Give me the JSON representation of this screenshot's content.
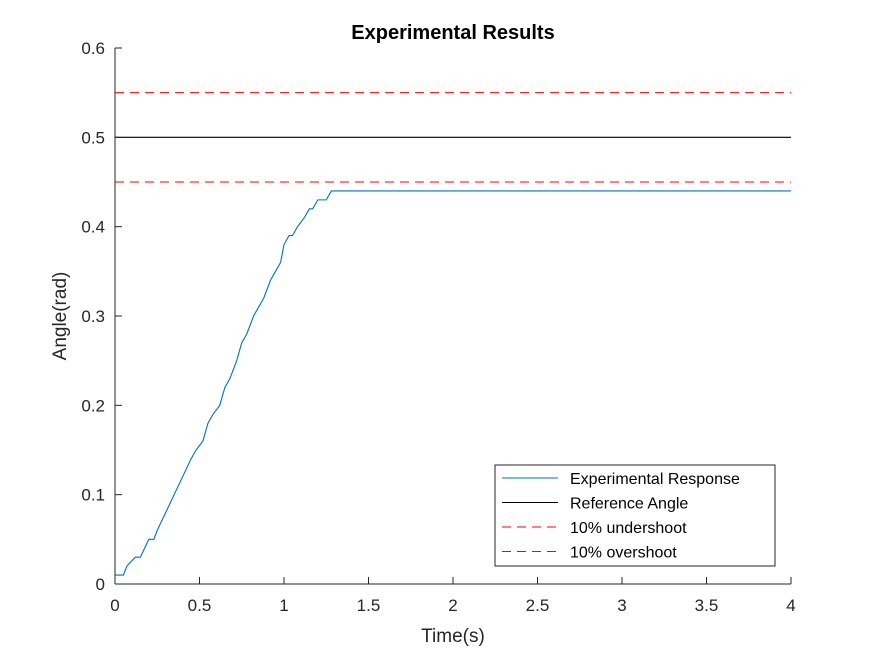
{
  "chart_data": {
    "type": "line",
    "title": "Experimental Results",
    "xlabel": "Time(s)",
    "ylabel": "Angle(rad)",
    "xlim": [
      0,
      4
    ],
    "ylim": [
      0,
      0.6
    ],
    "xticks": [
      "0",
      "0.5",
      "1",
      "1.5",
      "2",
      "2.5",
      "3",
      "3.5",
      "4"
    ],
    "yticks": [
      "0",
      "0.1",
      "0.2",
      "0.3",
      "0.4",
      "0.5",
      "0.6"
    ],
    "grid": false,
    "legend_position": "bottom-right",
    "series": [
      {
        "name": "Experimental Response",
        "color": "#0072BD",
        "style": "solid",
        "x": [
          0,
          0.05,
          0.07,
          0.12,
          0.15,
          0.2,
          0.23,
          0.25,
          0.3,
          0.35,
          0.4,
          0.45,
          0.48,
          0.52,
          0.55,
          0.58,
          0.62,
          0.65,
          0.68,
          0.72,
          0.75,
          0.78,
          0.82,
          0.85,
          0.88,
          0.92,
          0.95,
          0.98,
          1.0,
          1.03,
          1.05,
          1.08,
          1.12,
          1.15,
          1.17,
          1.2,
          1.22,
          1.25,
          1.28,
          1.3,
          1.5,
          2,
          2.5,
          3,
          3.5,
          4
        ],
        "y": [
          0.01,
          0.01,
          0.02,
          0.03,
          0.03,
          0.05,
          0.05,
          0.06,
          0.08,
          0.1,
          0.12,
          0.14,
          0.15,
          0.16,
          0.18,
          0.19,
          0.2,
          0.22,
          0.23,
          0.25,
          0.27,
          0.28,
          0.3,
          0.31,
          0.32,
          0.34,
          0.35,
          0.36,
          0.38,
          0.39,
          0.39,
          0.4,
          0.41,
          0.42,
          0.42,
          0.43,
          0.43,
          0.43,
          0.44,
          0.44,
          0.44,
          0.44,
          0.44,
          0.44,
          0.44,
          0.44
        ]
      },
      {
        "name": "Reference Angle",
        "color": "#000000",
        "style": "solid",
        "x": [
          0,
          4
        ],
        "y": [
          0.5,
          0.5
        ]
      },
      {
        "name": "10% undershoot",
        "color": "#FF0000",
        "style": "dashed",
        "x": [
          0,
          4
        ],
        "y": [
          0.45,
          0.45
        ]
      },
      {
        "name": "10% overshoot",
        "color": "#FF0000",
        "style": "dashed",
        "x": [
          0,
          4
        ],
        "y": [
          0.55,
          0.55
        ]
      }
    ]
  }
}
